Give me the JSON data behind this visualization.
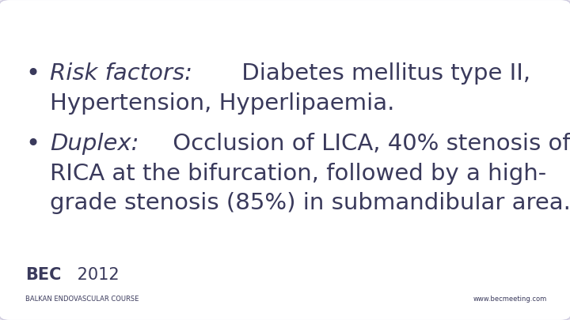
{
  "bg_color": "#eeecf2",
  "slide_bg": "#ffffff",
  "border_color": "#d0cce0",
  "text_color": "#3a3a5c",
  "bullet1_italic": "Risk factors:",
  "bullet1_rest_line1": " Diabetes mellitus type II,",
  "bullet1_line2": "Hypertension, Hyperlipaemia.",
  "bullet2_italic": "Duplex:",
  "bullet2_rest_line1": " Occlusion of LICA, 40% stenosis of",
  "bullet2_line2": "RICA at the bifurcation, followed by a high-",
  "bullet2_line3": "grade stenosis (85%) in submandibular area.",
  "footer_bec_bold": "BEC",
  "footer_bec_light": " 2012",
  "footer_sub": "BALKAN ENDOVASCULAR COURSE",
  "footer_web": "www.becmeeting.com",
  "font_size_main": 21,
  "font_size_footer_bec": 15,
  "font_size_footer_sub": 6,
  "font_size_footer_web": 6
}
